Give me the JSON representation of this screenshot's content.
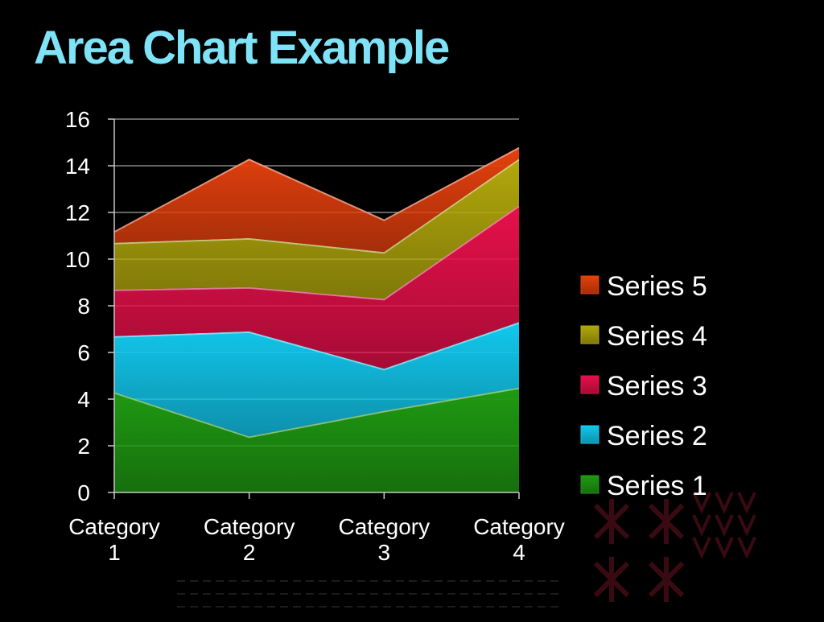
{
  "title": "Area Chart Example",
  "chart_data": {
    "type": "area",
    "stacked": true,
    "categories": [
      "Category\n1",
      "Category\n2",
      "Category\n3",
      "Category\n4"
    ],
    "series": [
      {
        "name": "Series 1",
        "values": [
          4.3,
          2.4,
          3.5,
          4.5
        ],
        "color": "#1f9a12"
      },
      {
        "name": "Series 2",
        "values": [
          2.4,
          4.5,
          1.8,
          2.8
        ],
        "color": "#12c8ee"
      },
      {
        "name": "Series 3",
        "values": [
          2.0,
          1.9,
          3.0,
          5.0
        ],
        "color": "#e6104a"
      },
      {
        "name": "Series 4",
        "values": [
          2.0,
          2.1,
          2.0,
          2.0
        ],
        "color": "#b2a80c"
      },
      {
        "name": "Series 5",
        "values": [
          0.5,
          3.4,
          1.4,
          0.5
        ],
        "color": "#e5400d"
      }
    ],
    "ylim": [
      0,
      16
    ],
    "yticks": [
      0,
      2,
      4,
      6,
      8,
      10,
      12,
      14,
      16
    ],
    "grid": true,
    "legend_position": "right"
  }
}
